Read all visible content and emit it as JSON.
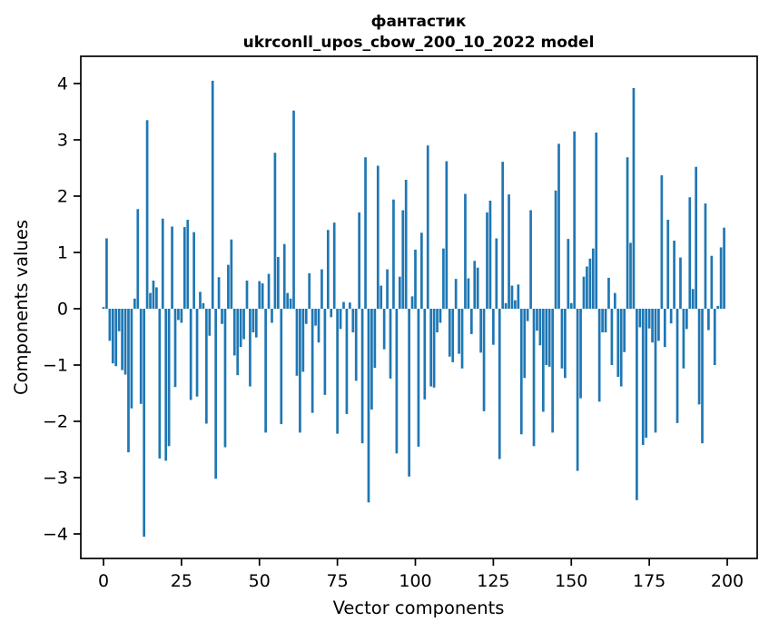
{
  "chart_data": {
    "type": "bar",
    "title_line1": "фантастик",
    "title_line2": "ukrconll_upos_cbow_200_10_2022 model",
    "xlabel": "Vector components",
    "ylabel": "Components values",
    "x_ticks": [
      0,
      25,
      50,
      75,
      100,
      125,
      150,
      175,
      200
    ],
    "y_ticks": [
      -4,
      -3,
      -2,
      -1,
      0,
      1,
      2,
      3,
      4
    ],
    "xlim": [
      -7.3,
      209.6
    ],
    "ylim": [
      -4.43,
      4.48
    ],
    "n_components": 200,
    "bar_color": "#1f77b4",
    "spine_color": "#000000",
    "background_color": "#ffffff",
    "legend": "none",
    "grid": false,
    "values": [
      0.03,
      1.25,
      -0.57,
      -0.97,
      -1.02,
      -0.4,
      -1.09,
      -1.17,
      -2.55,
      -1.77,
      0.18,
      1.77,
      -1.69,
      -4.05,
      3.35,
      0.28,
      0.5,
      0.38,
      -2.66,
      1.6,
      -2.7,
      -2.44,
      1.46,
      -1.39,
      -0.2,
      -0.25,
      1.45,
      1.58,
      -1.62,
      1.36,
      -1.56,
      0.3,
      0.1,
      -2.04,
      -0.48,
      4.05,
      -3.02,
      0.56,
      -0.27,
      -2.46,
      0.78,
      1.23,
      -0.83,
      -1.18,
      -0.68,
      -0.54,
      0.5,
      -1.38,
      -0.42,
      -0.51,
      0.49,
      0.45,
      -2.2,
      0.62,
      -0.25,
      2.77,
      0.92,
      -2.05,
      1.15,
      0.28,
      0.18,
      3.52,
      -1.19,
      -2.2,
      -1.12,
      -0.27,
      0.63,
      -1.85,
      -0.3,
      -0.6,
      0.7,
      -1.53,
      1.4,
      -0.15,
      1.53,
      -2.22,
      -0.36,
      0.12,
      -1.87,
      0.11,
      -0.42,
      -1.28,
      1.71,
      -2.39,
      2.69,
      -3.44,
      -1.79,
      -1.05,
      2.54,
      0.41,
      -0.72,
      0.7,
      -1.24,
      1.94,
      -2.57,
      0.57,
      1.75,
      2.29,
      -2.98,
      0.22,
      1.05,
      -2.45,
      1.35,
      -1.61,
      2.9,
      -1.38,
      -1.4,
      -0.42,
      -0.25,
      1.07,
      2.62,
      -0.85,
      -0.95,
      0.53,
      -0.8,
      -1.06,
      2.04,
      0.54,
      -0.45,
      0.85,
      0.73,
      -0.78,
      -1.82,
      1.71,
      1.92,
      -0.64,
      1.25,
      -2.67,
      2.61,
      0.1,
      2.03,
      0.41,
      0.15,
      0.43,
      -2.23,
      -1.23,
      -0.22,
      1.75,
      -2.44,
      -0.39,
      -0.65,
      -1.83,
      -1.0,
      -1.03,
      -2.2,
      2.1,
      2.93,
      -1.06,
      -1.23,
      1.24,
      0.1,
      3.15,
      -2.88,
      -1.59,
      0.57,
      0.75,
      0.89,
      1.07,
      3.13,
      -1.65,
      -0.42,
      -0.42,
      0.55,
      -1.0,
      0.28,
      -1.21,
      -1.38,
      -0.77,
      2.69,
      1.17,
      3.92,
      -3.4,
      -0.33,
      -2.42,
      -2.29,
      -0.35,
      -0.6,
      -2.2,
      -0.57,
      2.37,
      -0.68,
      1.58,
      -0.26,
      1.21,
      -2.03,
      0.91,
      -1.06,
      -0.36,
      1.98,
      0.35,
      2.52,
      -1.7,
      -2.39,
      1.87,
      -0.38,
      0.94,
      -1.0,
      0.05,
      1.09,
      1.44
    ]
  }
}
